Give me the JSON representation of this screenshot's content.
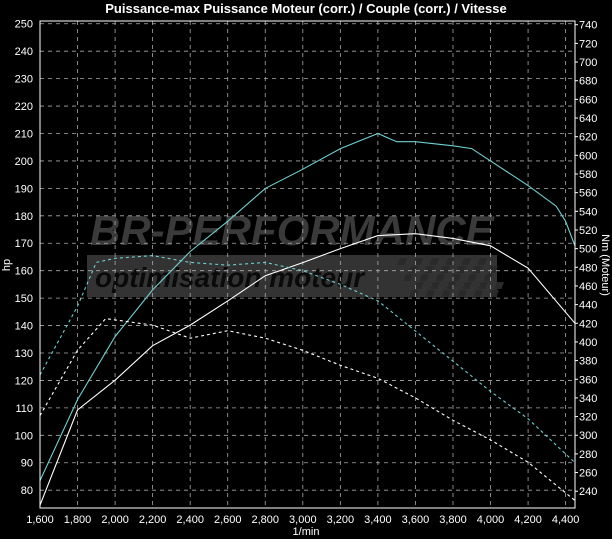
{
  "chart_data": {
    "type": "line",
    "title": "Puissance-max Puissance Moteur (corr.) / Couple (corr.) / Vitesse",
    "xlabel": "1/min",
    "ylabel": "hp",
    "y2label": "Nm (Moteur)",
    "xlim": [
      1600,
      4450
    ],
    "ylim": [
      73.5,
      251
    ],
    "y2lim": [
      222,
      744
    ],
    "xticks": [
      "1,600",
      "1,800",
      "2,000",
      "2,200",
      "2,400",
      "2,600",
      "2,800",
      "3,000",
      "3,200",
      "3,400",
      "3,600",
      "3,800",
      "4,000",
      "4,200",
      "4,400"
    ],
    "yticks": [
      80,
      90,
      100,
      110,
      120,
      130,
      140,
      150,
      160,
      170,
      180,
      190,
      200,
      210,
      220,
      230,
      240,
      250
    ],
    "y2ticks": [
      240,
      260,
      280,
      300,
      320,
      340,
      360,
      380,
      400,
      420,
      440,
      460,
      480,
      500,
      520,
      540,
      560,
      580,
      600,
      620,
      640,
      660,
      680,
      700,
      720,
      740
    ],
    "grid": true,
    "background": "#000000",
    "series": [
      {
        "axis": "left",
        "color": "#6fd0d0",
        "style": "solid",
        "x": [
          1600,
          1800,
          2000,
          2200,
          2400,
          2600,
          2800,
          3000,
          3200,
          3400,
          3500,
          3600,
          3800,
          3900,
          4000,
          4200,
          4350,
          4400,
          4450
        ],
        "y": [
          83.5,
          113,
          136,
          153,
          167,
          178,
          190,
          197,
          204.5,
          210,
          207,
          207,
          205.5,
          204.5,
          200,
          191,
          183.5,
          178,
          169
        ]
      },
      {
        "axis": "right",
        "color": "#ffffff",
        "style": "solid",
        "x": [
          1600,
          1800,
          2000,
          2200,
          2400,
          2600,
          2800,
          3000,
          3200,
          3400,
          3600,
          3800,
          4000,
          4200,
          4450
        ],
        "y": [
          225,
          327,
          359,
          396,
          418,
          444,
          471,
          485,
          500,
          514,
          516,
          511,
          503,
          479,
          420
        ]
      },
      {
        "axis": "left",
        "color": "#6fd0d0",
        "style": "dashed",
        "x": [
          1600,
          1800,
          1900,
          2000,
          2200,
          2400,
          2600,
          2800,
          3000,
          3200,
          3400,
          3600,
          3800,
          4000,
          4200,
          4450
        ],
        "y": [
          122,
          147,
          163,
          164.5,
          165.5,
          163,
          162,
          163,
          160,
          155,
          149,
          138,
          127,
          116,
          106,
          90
        ]
      },
      {
        "axis": "right",
        "color": "#ffffff",
        "style": "dashed",
        "x": [
          1600,
          1800,
          1950,
          2200,
          2400,
          2600,
          2800,
          3000,
          3200,
          3400,
          3600,
          3800,
          4000,
          4200,
          4450
        ],
        "y": [
          321,
          391,
          425,
          418,
          404,
          412,
          404,
          391,
          375,
          361,
          340,
          316,
          295,
          271,
          230
        ]
      }
    ]
  },
  "watermark": {
    "line1": "BR-PERFORMANCE",
    "line2": "optimisation moteur"
  }
}
